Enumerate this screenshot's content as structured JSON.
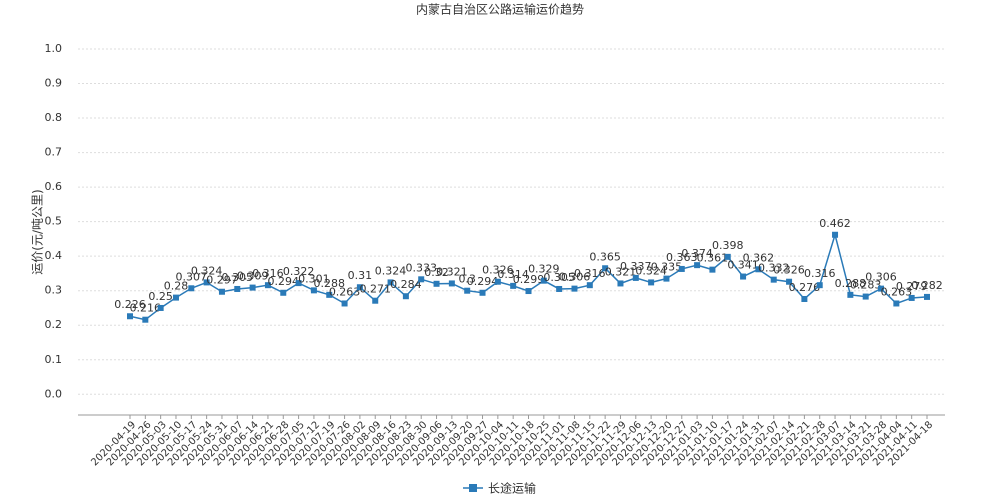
{
  "chart_data": {
    "type": "line",
    "title": "内蒙古自治区公路运输运价趋势",
    "y_label": "运价(元/吨公里)",
    "categories": [
      "2020-04-19",
      "2020-04-26",
      "2020-05-03",
      "2020-05-10",
      "2020-05-17",
      "2020-05-24",
      "2020-05-31",
      "2020-06-07",
      "2020-06-14",
      "2020-06-21",
      "2020-06-28",
      "2020-07-05",
      "2020-07-12",
      "2020-07-19",
      "2020-07-26",
      "2020-08-02",
      "2020-08-09",
      "2020-08-16",
      "2020-08-23",
      "2020-08-30",
      "2020-09-06",
      "2020-09-13",
      "2020-09-20",
      "2020-09-27",
      "2020-10-04",
      "2020-10-11",
      "2020-10-18",
      "2020-10-25",
      "2020-11-01",
      "2020-11-08",
      "2020-11-15",
      "2020-11-22",
      "2020-11-29",
      "2020-12-06",
      "2020-12-13",
      "2020-12-20",
      "2020-12-27",
      "2021-01-03",
      "2021-01-10",
      "2021-01-17",
      "2021-01-24",
      "2021-01-31",
      "2021-02-07",
      "2021-02-14",
      "2021-02-21",
      "2021-02-28",
      "2021-03-07",
      "2021-03-14",
      "2021-03-21",
      "2021-03-28",
      "2021-04-04",
      "2021-04-11",
      "2021-04-18"
    ],
    "series": [
      {
        "name": "长途运输",
        "color": "#2a7ab8",
        "values": [
          0.226,
          0.216,
          0.25,
          0.28,
          0.307,
          0.324,
          0.297,
          0.305,
          0.309,
          0.316,
          0.294,
          0.322,
          0.301,
          0.288,
          0.263,
          0.31,
          0.271,
          0.324,
          0.284,
          0.333,
          0.32,
          0.321,
          0.3,
          0.294,
          0.326,
          0.314,
          0.299,
          0.329,
          0.305,
          0.306,
          0.316,
          0.365,
          0.321,
          0.337,
          0.324,
          0.335,
          0.363,
          0.374,
          0.361,
          0.398,
          0.341,
          0.362,
          0.332,
          0.326,
          0.276,
          0.316,
          0.462,
          0.288,
          0.283,
          0.306,
          0.263,
          0.279,
          0.282
        ]
      }
    ],
    "ylim": [
      -0.06,
      1.0
    ],
    "yticks": [
      {
        "value": 0,
        "label": "0.0"
      },
      0.1,
      0.2,
      0.3,
      0.4,
      0.5,
      0.6,
      0.7,
      0.8,
      0.9,
      {
        "value": 1,
        "label": "1.0"
      }
    ],
    "grid": true,
    "legend": "bottom"
  }
}
